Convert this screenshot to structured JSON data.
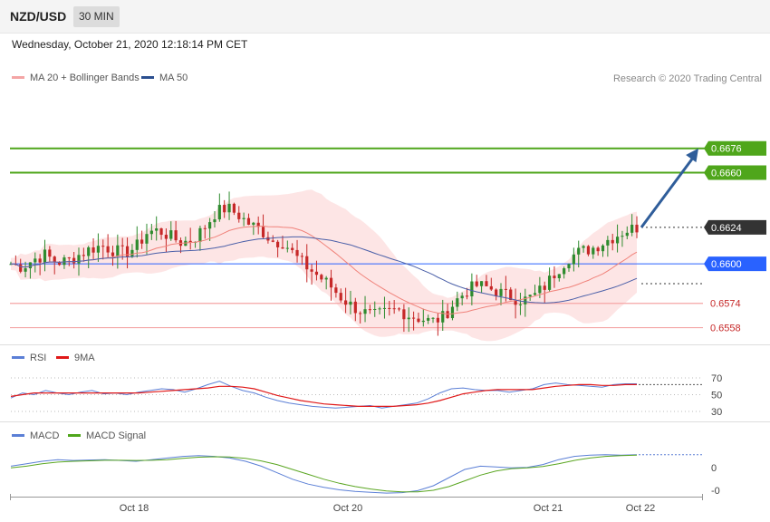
{
  "header": {
    "pair": "NZD/USD",
    "timeframe": "30 MIN"
  },
  "date": "Wednesday, October 21, 2020 12:18:14 PM CET",
  "credit": "Research © 2020 Trading Central",
  "colors": {
    "up": "#2e8b2e",
    "down": "#c62828",
    "ma20": "#f0827a",
    "bands": "#fde0e0",
    "ma50": "#4a5fa8",
    "green_level": "#4fa61b",
    "blue_level": "#2962ff",
    "red_level": "#f4a5a5",
    "price_tag": "#333333",
    "arrow": "#2f5d9a",
    "rsi": "#5b7fd6",
    "rsi_ma": "#e01818",
    "macd": "#5b7fd6",
    "macd_signal": "#5aa621"
  },
  "legend_main": [
    {
      "label": "MA 20 + Bollinger Bands",
      "color": "#f4a5a5"
    },
    {
      "label": "MA 50",
      "color": "#2b4f8f"
    }
  ],
  "legend_rsi": [
    {
      "label": "RSI",
      "color": "#5b7fd6"
    },
    {
      "label": "9MA",
      "color": "#e01818"
    }
  ],
  "legend_macd": [
    {
      "label": "MACD",
      "color": "#5b7fd6"
    },
    {
      "label": "MACD Signal",
      "color": "#4fa61b"
    }
  ],
  "chart_data": {
    "type": "candlestick",
    "x_tick_labels": [
      "Oct 18",
      "Oct 20",
      "Oct 21",
      "Oct 22"
    ],
    "levels": [
      {
        "value": 0.6676,
        "label": "0.6676",
        "kind": "resistance"
      },
      {
        "value": 0.666,
        "label": "0.6660",
        "kind": "resistance"
      },
      {
        "value": 0.6624,
        "label": "0.6624",
        "kind": "last_price"
      },
      {
        "value": 0.66,
        "label": "0.6600",
        "kind": "pivot"
      },
      {
        "value": 0.6574,
        "label": "0.6574",
        "kind": "support"
      },
      {
        "value": 0.6558,
        "label": "0.6558",
        "kind": "support"
      }
    ],
    "ylim": [
      0.6547,
      0.6717
    ],
    "forecast": {
      "from": 0.6624,
      "to": 0.6676
    },
    "price_path": [
      0.66,
      0.6598,
      0.6603,
      0.6606,
      0.6601,
      0.6602,
      0.6606,
      0.661,
      0.6612,
      0.6609,
      0.6607,
      0.6611,
      0.6621,
      0.6622,
      0.6618,
      0.6614,
      0.6616,
      0.6624,
      0.6634,
      0.6637,
      0.6632,
      0.6626,
      0.6622,
      0.6615,
      0.6614,
      0.6605,
      0.6598,
      0.6592,
      0.6586,
      0.6578,
      0.6572,
      0.6568,
      0.6566,
      0.6568,
      0.657,
      0.6566,
      0.6564,
      0.6562,
      0.6565,
      0.6575,
      0.6582,
      0.6586,
      0.6584,
      0.6581,
      0.6578,
      0.6576,
      0.6579,
      0.6586,
      0.6596,
      0.6604,
      0.6608,
      0.661,
      0.6614,
      0.6618,
      0.6622,
      0.6624
    ],
    "rsi": {
      "ticks": [
        "70",
        "50",
        "30"
      ],
      "rsi_values": [
        46,
        52,
        50,
        55,
        52,
        50,
        53,
        55,
        51,
        52,
        50,
        53,
        55,
        57,
        56,
        53,
        57,
        62,
        66,
        60,
        55,
        52,
        47,
        43,
        40,
        38,
        36,
        35,
        34,
        35,
        36,
        37,
        34,
        36,
        38,
        40,
        45,
        52,
        57,
        58,
        56,
        55,
        55,
        53,
        55,
        57,
        62,
        64,
        62,
        61,
        60,
        59,
        62,
        63,
        63
      ],
      "ma_values": [
        48,
        50,
        52,
        52,
        52,
        52,
        52,
        52,
        52,
        52,
        52,
        52,
        53,
        54,
        55,
        56,
        57,
        58,
        60,
        60,
        59,
        57,
        53,
        49,
        46,
        43,
        41,
        39,
        38,
        37,
        36,
        36,
        36,
        36,
        37,
        38,
        40,
        43,
        47,
        51,
        53,
        55,
        56,
        56,
        56,
        56,
        58,
        60,
        61,
        62,
        62,
        61,
        61,
        62,
        62
      ]
    },
    "macd": {
      "ticks": [
        "0",
        "-0"
      ],
      "macd_values": [
        0.2,
        0.35,
        0.5,
        0.6,
        0.55,
        0.58,
        0.6,
        0.55,
        0.5,
        0.6,
        0.7,
        0.8,
        0.85,
        0.8,
        0.7,
        0.5,
        0.2,
        -0.2,
        -0.6,
        -0.9,
        -1.1,
        -1.25,
        -1.35,
        -1.4,
        -1.45,
        -1.42,
        -1.3,
        -1.0,
        -0.5,
        0.0,
        0.2,
        0.15,
        0.1,
        0.12,
        0.3,
        0.6,
        0.8,
        0.88,
        0.9,
        0.88,
        0.9
      ],
      "signal_values": [
        0.1,
        0.2,
        0.35,
        0.45,
        0.5,
        0.53,
        0.56,
        0.56,
        0.55,
        0.56,
        0.6,
        0.68,
        0.75,
        0.78,
        0.76,
        0.68,
        0.52,
        0.3,
        0.0,
        -0.3,
        -0.6,
        -0.85,
        -1.05,
        -1.2,
        -1.32,
        -1.38,
        -1.38,
        -1.28,
        -1.05,
        -0.7,
        -0.35,
        -0.1,
        0.05,
        0.1,
        0.18,
        0.35,
        0.55,
        0.7,
        0.8,
        0.85,
        0.88
      ]
    }
  }
}
